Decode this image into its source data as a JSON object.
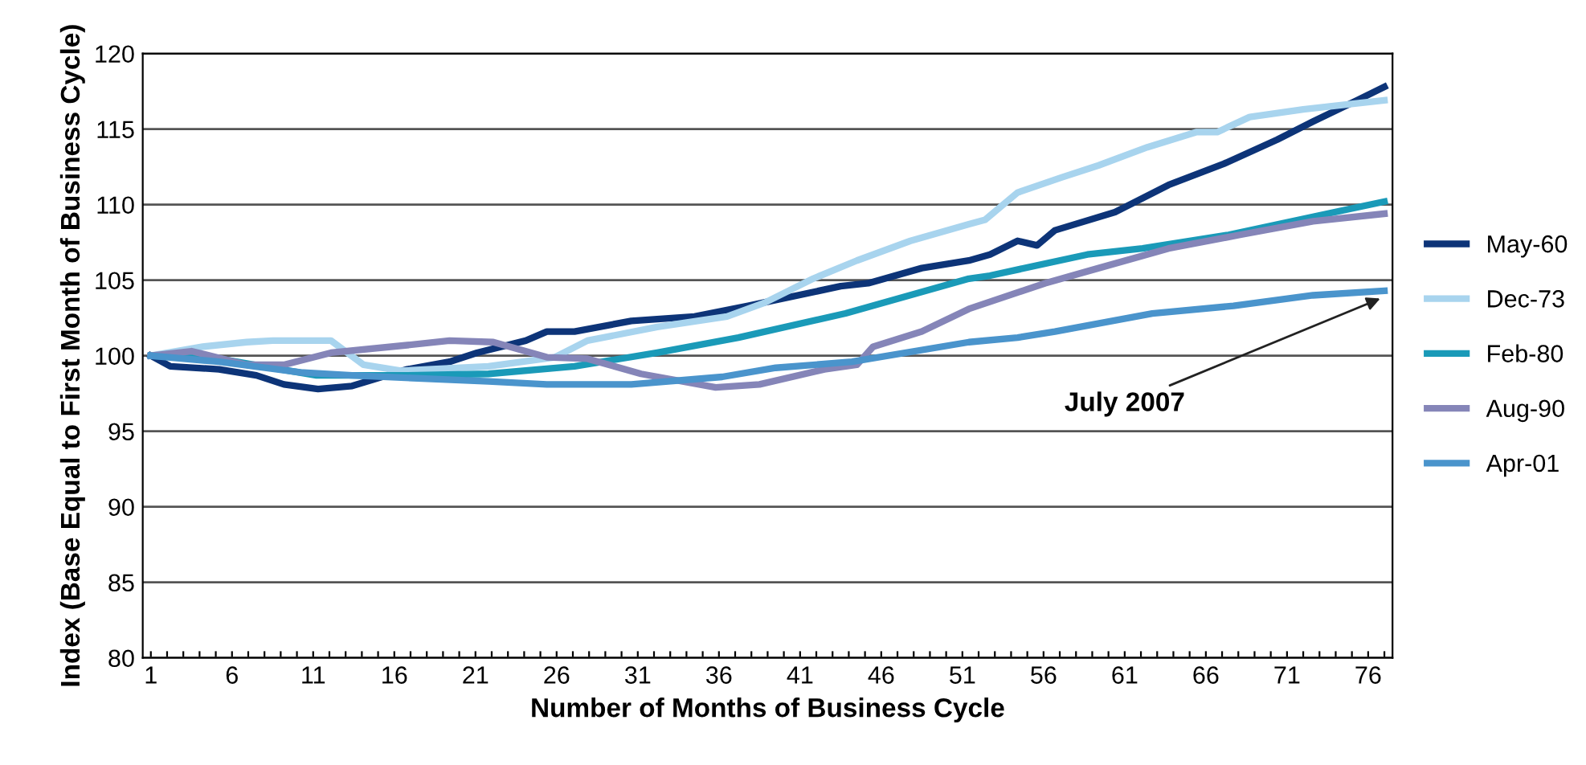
{
  "chart_data": {
    "type": "line",
    "xlabel": "Number of Months of Business Cycle",
    "ylabel": "Index (Base Equal to First Month of Business Cycle)",
    "xlim": [
      0.5,
      77.5
    ],
    "ylim": [
      80,
      120
    ],
    "yticks": [
      80,
      85,
      90,
      95,
      100,
      105,
      110,
      115,
      120
    ],
    "xticks": [
      1,
      {
        "value": 2,
        "label": null
      },
      {
        "value": 3,
        "label": null
      },
      {
        "value": 4,
        "label": null
      },
      {
        "value": 5,
        "label": null
      },
      6,
      {
        "value": 7,
        "label": null
      },
      {
        "value": 8,
        "label": null
      },
      {
        "value": 9,
        "label": null
      },
      {
        "value": 10,
        "label": null
      },
      11,
      {
        "value": 12,
        "label": null
      },
      {
        "value": 13,
        "label": null
      },
      {
        "value": 14,
        "label": null
      },
      {
        "value": 15,
        "label": null
      },
      16,
      {
        "value": 17,
        "label": null
      },
      {
        "value": 18,
        "label": null
      },
      {
        "value": 19,
        "label": null
      },
      {
        "value": 20,
        "label": null
      },
      21,
      {
        "value": 22,
        "label": null
      },
      {
        "value": 23,
        "label": null
      },
      {
        "value": 24,
        "label": null
      },
      {
        "value": 25,
        "label": null
      },
      26,
      {
        "value": 27,
        "label": null
      },
      {
        "value": 28,
        "label": null
      },
      {
        "value": 29,
        "label": null
      },
      {
        "value": 30,
        "label": null
      },
      31,
      {
        "value": 32,
        "label": null
      },
      {
        "value": 33,
        "label": null
      },
      {
        "value": 34,
        "label": null
      },
      {
        "value": 35,
        "label": null
      },
      36,
      {
        "value": 37,
        "label": null
      },
      {
        "value": 38,
        "label": null
      },
      {
        "value": 39,
        "label": null
      },
      {
        "value": 40,
        "label": null
      },
      41,
      {
        "value": 42,
        "label": null
      },
      {
        "value": 43,
        "label": null
      },
      {
        "value": 44,
        "label": null
      },
      {
        "value": 45,
        "label": null
      },
      46,
      {
        "value": 47,
        "label": null
      },
      {
        "value": 48,
        "label": null
      },
      {
        "value": 49,
        "label": null
      },
      {
        "value": 50,
        "label": null
      },
      51,
      {
        "value": 52,
        "label": null
      },
      {
        "value": 53,
        "label": null
      },
      {
        "value": 54,
        "label": null
      },
      {
        "value": 55,
        "label": null
      },
      56,
      {
        "value": 57,
        "label": null
      },
      {
        "value": 58,
        "label": null
      },
      {
        "value": 59,
        "label": null
      },
      {
        "value": 60,
        "label": null
      },
      61,
      {
        "value": 62,
        "label": null
      },
      {
        "value": 63,
        "label": null
      },
      {
        "value": 64,
        "label": null
      },
      {
        "value": 65,
        "label": null
      },
      66,
      {
        "value": 67,
        "label": null
      },
      {
        "value": 68,
        "label": null
      },
      {
        "value": 69,
        "label": null
      },
      {
        "value": 70,
        "label": null
      },
      71,
      {
        "value": 72,
        "label": null
      },
      {
        "value": 73,
        "label": null
      },
      {
        "value": 74,
        "label": null
      },
      {
        "value": 75,
        "label": null
      },
      76,
      {
        "value": 77,
        "label": null
      }
    ],
    "grid": "y",
    "legend": "right",
    "marker": "none",
    "line_style": "solid",
    "series": [
      {
        "name": "May-60",
        "color": "#0d3478",
        "x": [
          1,
          2.2,
          5.2,
          7.5,
          9.2,
          11.3,
          13.4,
          16.8,
          19.4,
          21.1,
          24.1,
          25.4,
          27.1,
          30.6,
          34.5,
          37.8,
          43.5,
          45.2,
          48.5,
          51.4,
          52.7,
          54.4,
          55.6,
          56.7,
          60.4,
          63.7,
          67.1,
          70.4,
          72.6,
          75.3,
          77
        ],
        "values": [
          100,
          99.3,
          99.1,
          98.7,
          98.1,
          97.8,
          98.0,
          99.1,
          99.6,
          100.2,
          101.0,
          101.6,
          101.6,
          102.3,
          102.6,
          103.3,
          104.6,
          104.8,
          105.8,
          106.3,
          106.7,
          107.6,
          107.3,
          108.3,
          109.5,
          111.3,
          112.7,
          114.3,
          115.5,
          116.9,
          117.8
        ]
      },
      {
        "name": "Dec-73",
        "color": "#a8d4ee",
        "x": [
          1,
          4.2,
          6.9,
          8.5,
          12.1,
          14.1,
          16.4,
          21.8,
          25.9,
          27.9,
          32.2,
          36.5,
          38.8,
          41.8,
          44.5,
          47.8,
          51.4,
          52.4,
          54.4,
          57.1,
          59.4,
          62.4,
          65.4,
          66.7,
          68.7,
          72.0,
          75.3,
          77
        ],
        "values": [
          100,
          100.6,
          100.9,
          101.0,
          101.0,
          99.4,
          99.0,
          99.3,
          99.9,
          101.0,
          101.9,
          102.6,
          103.5,
          105.1,
          106.3,
          107.6,
          108.7,
          109.0,
          110.8,
          111.8,
          112.6,
          113.8,
          114.8,
          114.8,
          115.8,
          116.3,
          116.7,
          116.9
        ]
      },
      {
        "name": "Feb-80",
        "color": "#1a9ab8",
        "x": [
          1,
          5.2,
          7.9,
          11.2,
          16.8,
          21.8,
          27.1,
          32.2,
          37.2,
          43.8,
          51.4,
          52.7,
          58.7,
          62.1,
          67.4,
          72.6,
          77
        ],
        "values": [
          100,
          99.8,
          99.3,
          98.7,
          98.7,
          98.8,
          99.3,
          100.2,
          101.2,
          102.8,
          105.1,
          105.3,
          106.7,
          107.1,
          108.0,
          109.2,
          110.2
        ]
      },
      {
        "name": "Aug-90",
        "color": "#8585b8",
        "x": [
          1,
          3.5,
          6.9,
          9.2,
          12.1,
          16.8,
          19.4,
          22.1,
          25.4,
          27.9,
          31.2,
          35.8,
          38.5,
          42.5,
          44.5,
          45.5,
          48.5,
          51.4,
          56.1,
          59.4,
          63.7,
          68.1,
          72.6,
          77
        ],
        "values": [
          100,
          100.3,
          99.4,
          99.4,
          100.2,
          100.7,
          101.0,
          100.9,
          99.9,
          99.8,
          98.8,
          97.9,
          98.1,
          99.1,
          99.4,
          100.6,
          101.6,
          103.1,
          104.8,
          105.8,
          107.1,
          108.0,
          108.9,
          109.4
        ]
      },
      {
        "name": "Apr-01",
        "color": "#4a94cc",
        "x": [
          1,
          5.2,
          10.2,
          13.4,
          21.8,
          25.4,
          30.6,
          36.2,
          39.5,
          44.2,
          51.4,
          54.4,
          56.7,
          62.7,
          67.7,
          72.6,
          77
        ],
        "values": [
          100,
          99.6,
          98.9,
          98.7,
          98.3,
          98.1,
          98.1,
          98.6,
          99.2,
          99.6,
          100.9,
          101.2,
          101.6,
          102.8,
          103.3,
          104.0,
          104.3
        ]
      }
    ],
    "annotations": [
      {
        "text": "July 2007",
        "x": 77,
        "y": 104.3
      }
    ]
  }
}
